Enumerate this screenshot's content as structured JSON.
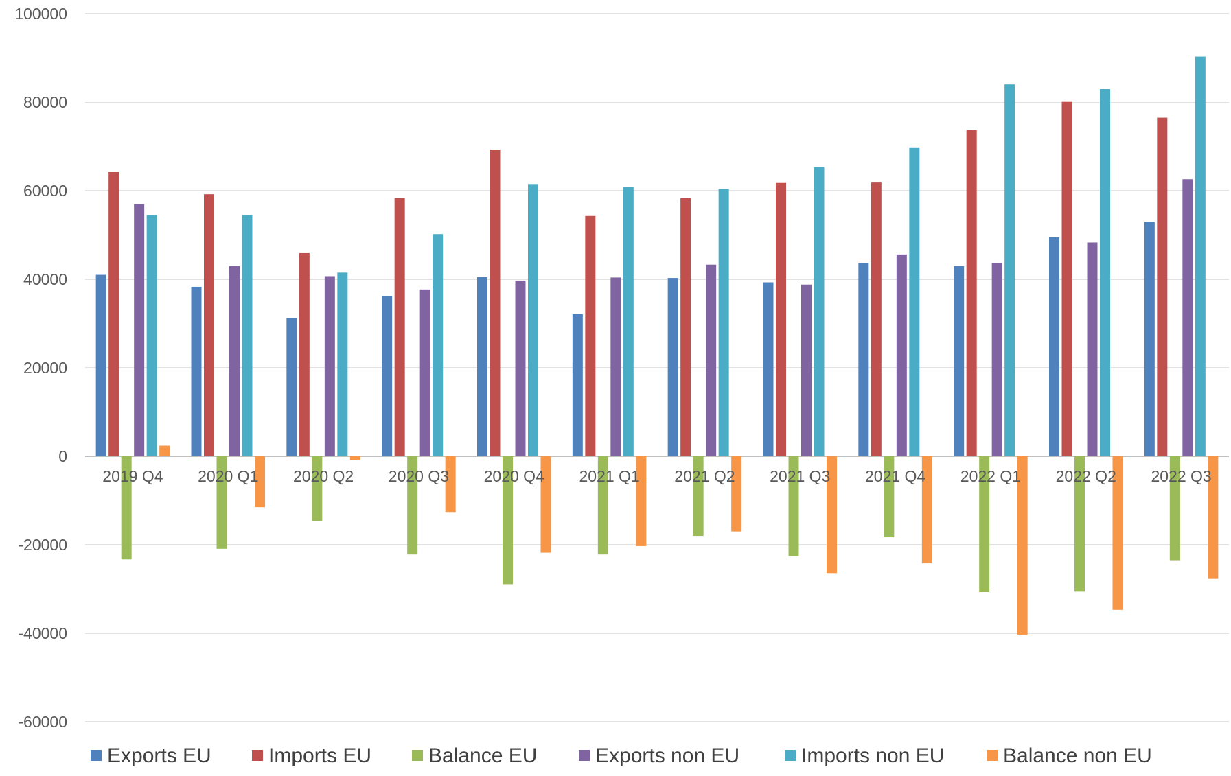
{
  "chart_data": {
    "type": "bar",
    "categories": [
      "2019 Q4",
      "2020 Q1",
      "2020 Q2",
      "2020 Q3",
      "2020 Q4",
      "2021 Q1",
      "2021 Q2",
      "2021 Q3",
      "2021 Q4",
      "2022 Q1",
      "2022 Q2",
      "2022 Q3"
    ],
    "series": [
      {
        "name": "Exports EU",
        "color": "#4f81bd",
        "values": [
          41000,
          38300,
          31200,
          36200,
          40500,
          32100,
          40300,
          39300,
          43700,
          43000,
          49500,
          53000
        ]
      },
      {
        "name": "Imports EU",
        "color": "#c0504d",
        "values": [
          64300,
          59200,
          45900,
          58400,
          69300,
          54300,
          58300,
          61900,
          62000,
          73700,
          80200,
          76500
        ]
      },
      {
        "name": "Balance EU",
        "color": "#9bbb59",
        "values": [
          -23300,
          -20900,
          -14700,
          -22200,
          -28900,
          -22200,
          -18000,
          -22600,
          -18300,
          -30700,
          -30600,
          -23500
        ]
      },
      {
        "name": "Exports non EU",
        "color": "#8064a2",
        "values": [
          57000,
          43000,
          40700,
          37700,
          39700,
          40400,
          43300,
          38800,
          45600,
          43600,
          48300,
          62600
        ]
      },
      {
        "name": "Imports non EU",
        "color": "#4bacc6",
        "values": [
          54500,
          54500,
          41500,
          50200,
          61500,
          60900,
          60400,
          65300,
          69800,
          84000,
          83000,
          90300
        ]
      },
      {
        "name": "Balance non EU",
        "color": "#f79646",
        "values": [
          2400,
          -11500,
          -900,
          -12600,
          -21800,
          -20300,
          -17000,
          -26400,
          -24200,
          -40300,
          -34700,
          -27700
        ]
      }
    ],
    "ylim": [
      -60000,
      100000
    ],
    "yticks": [
      100000,
      80000,
      60000,
      40000,
      20000,
      0,
      -20000,
      -40000,
      -60000
    ],
    "ytick_labels": [
      "100000",
      "80000",
      "60000",
      "40000",
      "20000",
      "0",
      "-20000",
      "-40000",
      "-60000"
    ],
    "grid": true,
    "legend_position": "bottom",
    "title": "",
    "xlabel": "",
    "ylabel": ""
  }
}
